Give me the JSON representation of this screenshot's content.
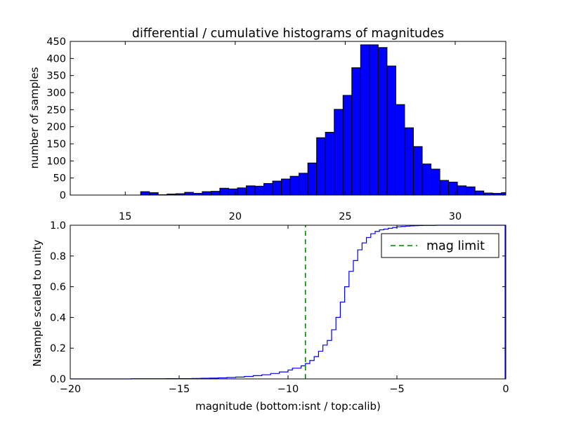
{
  "chart_data": [
    {
      "type": "bar",
      "title": "differential / cumulative histograms of magnitudes",
      "xlabel": "",
      "ylabel": "number of samples",
      "xlim": [
        12.5,
        32.3
      ],
      "ylim": [
        0,
        450
      ],
      "xticks": [
        15,
        20,
        25,
        30
      ],
      "yticks": [
        0,
        50,
        100,
        150,
        200,
        250,
        300,
        350,
        400,
        450
      ],
      "x_axis_position": "top-of-lower-panel",
      "bar_color": "#0000ff",
      "bin_width": 0.4,
      "bin_start": 12.5,
      "values": [
        0,
        0,
        0,
        0,
        0,
        0,
        0,
        0,
        10,
        7,
        1,
        3,
        4,
        8,
        5,
        10,
        11,
        20,
        18,
        21,
        27,
        26,
        34,
        41,
        47,
        55,
        64,
        94,
        168,
        184,
        251,
        292,
        373,
        440,
        440,
        432,
        378,
        265,
        197,
        142,
        91,
        76,
        43,
        38,
        27,
        24,
        12,
        6,
        5,
        7,
        3,
        3,
        5,
        2,
        5,
        0,
        0
      ],
      "grid": false,
      "legend": "none"
    },
    {
      "type": "line",
      "style": "step",
      "xlabel": "magnitude (bottom:isnt / top:calib)",
      "ylabel": "Nsample scaled to unity",
      "xlim": [
        -20,
        0
      ],
      "ylim": [
        0,
        1.0
      ],
      "xticks": [
        -20,
        -15,
        -10,
        -5,
        0
      ],
      "yticks": [
        0.0,
        0.2,
        0.4,
        0.6,
        0.8,
        1.0
      ],
      "series": [
        {
          "name": "",
          "color": "#0000ff",
          "x": [
            -20,
            -19.6,
            -19.2,
            -18.8,
            -18.4,
            -18,
            -17.6,
            -17.2,
            -16.8,
            -16.4,
            -16,
            -15.6,
            -15.2,
            -14.8,
            -14.4,
            -14,
            -13.6,
            -13.2,
            -12.8,
            -12.4,
            -12,
            -11.6,
            -11.2,
            -10.8,
            -10.4,
            -10,
            -9.8,
            -9.4,
            -9.2,
            -9,
            -8.8,
            -8.6,
            -8.4,
            -8.2,
            -8,
            -7.8,
            -7.6,
            -7.4,
            -7.2,
            -7,
            -6.8,
            -6.6,
            -6.4,
            -6.2,
            -6,
            -5.8,
            -5.6,
            -5.4,
            -5.2,
            -5,
            -4.8,
            -4.6,
            -4.4,
            -4.2,
            -4,
            -3.8,
            -3.6,
            -3.2,
            -2.8,
            -2.4,
            -2,
            -1.6,
            -1.2,
            -0.8,
            -0.4,
            -0.05
          ],
          "y": [
            0,
            0,
            0,
            0,
            0,
            0,
            0,
            0.001,
            0.001,
            0.001,
            0.001,
            0.002,
            0.002,
            0.002,
            0.003,
            0.004,
            0.005,
            0.007,
            0.009,
            0.012,
            0.016,
            0.021,
            0.027,
            0.035,
            0.045,
            0.058,
            0.07,
            0.085,
            0.1,
            0.12,
            0.145,
            0.18,
            0.22,
            0.25,
            0.32,
            0.4,
            0.5,
            0.6,
            0.7,
            0.77,
            0.84,
            0.885,
            0.92,
            0.945,
            0.96,
            0.97,
            0.975,
            0.98,
            0.985,
            0.99,
            0.992,
            0.994,
            0.996,
            0.997,
            0.998,
            0.999,
            0.999,
            1,
            1,
            1,
            1,
            1,
            1,
            1,
            1,
            1
          ]
        },
        {
          "name": "mag limit",
          "color": "#008000",
          "style": "dashed",
          "x": [
            -9.2,
            -9.2
          ],
          "y": [
            0,
            1.0
          ]
        }
      ],
      "legend": "top-right",
      "grid": false
    }
  ]
}
